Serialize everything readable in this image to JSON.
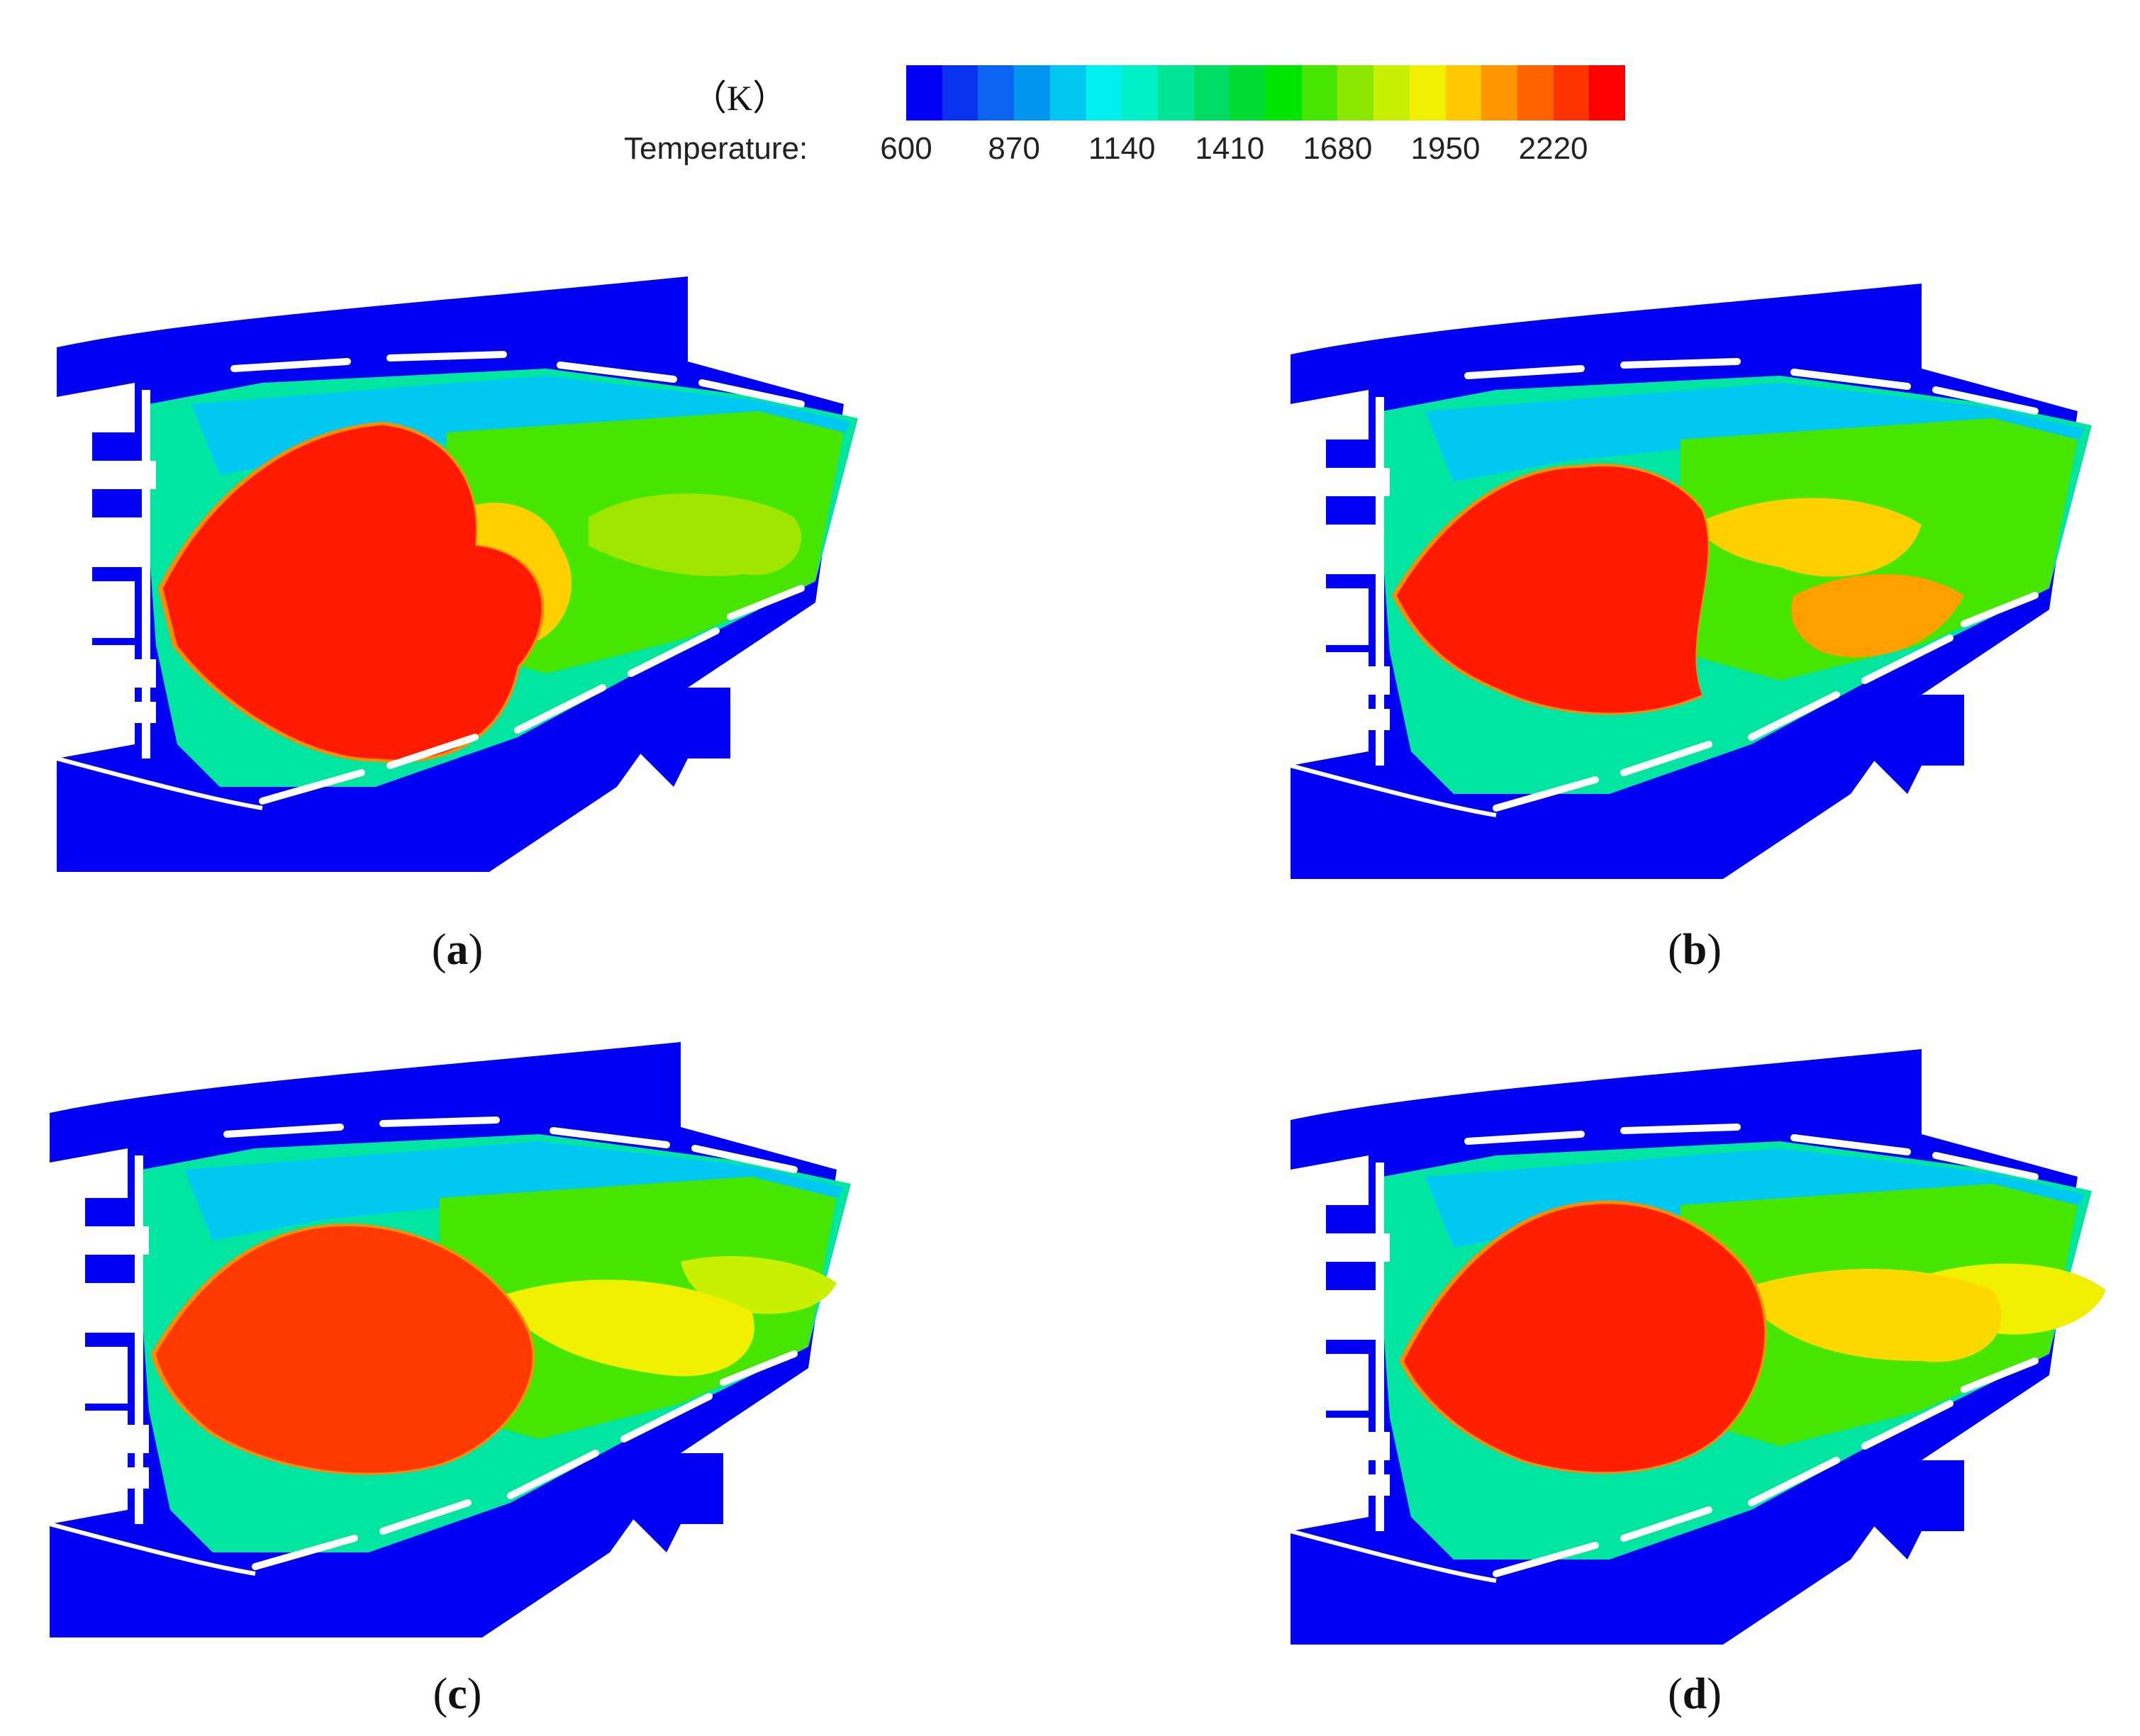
{
  "legend": {
    "unit": "（K）",
    "title": "Temperature:",
    "ticks": [
      "600",
      "870",
      "1140",
      "1410",
      "1680",
      "1950",
      "2220"
    ],
    "colors": [
      "#0000f5",
      "#0a32f0",
      "#0a64f0",
      "#0096f0",
      "#00c8f0",
      "#00f0f0",
      "#00f0c8",
      "#00e696",
      "#00dc64",
      "#00dc32",
      "#00e600",
      "#46e600",
      "#8ce600",
      "#c8f000",
      "#f0f000",
      "#ffc800",
      "#ff9600",
      "#ff6400",
      "#ff3200",
      "#ff0000"
    ]
  },
  "chart_data": {
    "type": "heatmap",
    "colorbar": {
      "quantity": "Temperature",
      "unit": "K",
      "ticks": [
        600,
        870,
        1140,
        1410,
        1680,
        1950,
        2220
      ],
      "range": [
        600,
        2400
      ]
    },
    "panels": [
      {
        "label": "a",
        "peak_region": "large high-temperature core near the upstream section",
        "dominant_colors": [
          "red",
          "yellow",
          "green",
          "cyan"
        ]
      },
      {
        "label": "b",
        "peak_region": "high-temperature core near upstream, cooler downstream",
        "dominant_colors": [
          "red",
          "orange",
          "green",
          "cyan"
        ]
      },
      {
        "label": "c",
        "peak_region": "distributed high-temperature region, yellow-green downstream",
        "dominant_colors": [
          "red",
          "orange",
          "yellow",
          "green"
        ]
      },
      {
        "label": "d",
        "peak_region": "central high-temperature core, yellow-green downstream",
        "dominant_colors": [
          "red",
          "orange",
          "yellow",
          "green"
        ]
      }
    ]
  },
  "panels": [
    {
      "label": "a"
    },
    {
      "label": "b"
    },
    {
      "label": "c"
    },
    {
      "label": "d"
    }
  ]
}
